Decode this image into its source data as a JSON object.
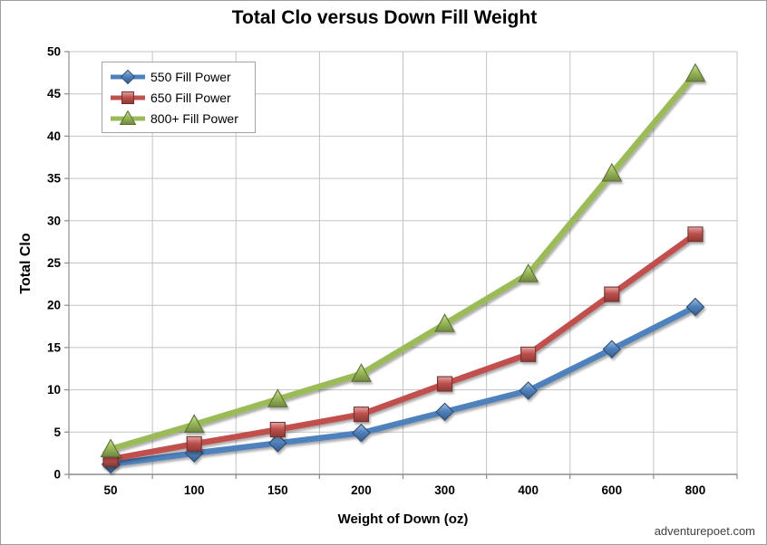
{
  "watermark": "adventurepoet.com",
  "chart_data": {
    "type": "line",
    "title": "Total Clo versus Down Fill Weight",
    "xlabel": "Weight of Down (oz)",
    "ylabel": "Total Clo",
    "categories": [
      "50",
      "100",
      "150",
      "200",
      "300",
      "400",
      "600",
      "800"
    ],
    "series": [
      {
        "name": "550 Fill Power",
        "marker": "diamond",
        "color": "#4F81BD",
        "values": [
          1.2,
          2.5,
          3.7,
          4.9,
          7.4,
          9.9,
          14.8,
          19.8
        ]
      },
      {
        "name": "650 Fill Power",
        "marker": "square",
        "color": "#C0504D",
        "values": [
          1.8,
          3.6,
          5.3,
          7.1,
          10.7,
          14.2,
          21.3,
          28.4
        ]
      },
      {
        "name": "800+ Fill Power",
        "marker": "triangle",
        "color": "#9BBB59",
        "values": [
          3.0,
          5.9,
          8.9,
          11.9,
          17.8,
          23.7,
          35.6,
          47.4
        ]
      }
    ],
    "ylim": [
      0,
      50
    ],
    "ytick_step": 5,
    "grid": true,
    "legend_position": "top-left",
    "colors": {
      "gridline": "#c3c3c3",
      "axis": "#8c8c8c",
      "text": "#000000",
      "watermark": "#3f3f3f",
      "legend_border": "#a3a3a3",
      "background": "#ffffff"
    }
  }
}
